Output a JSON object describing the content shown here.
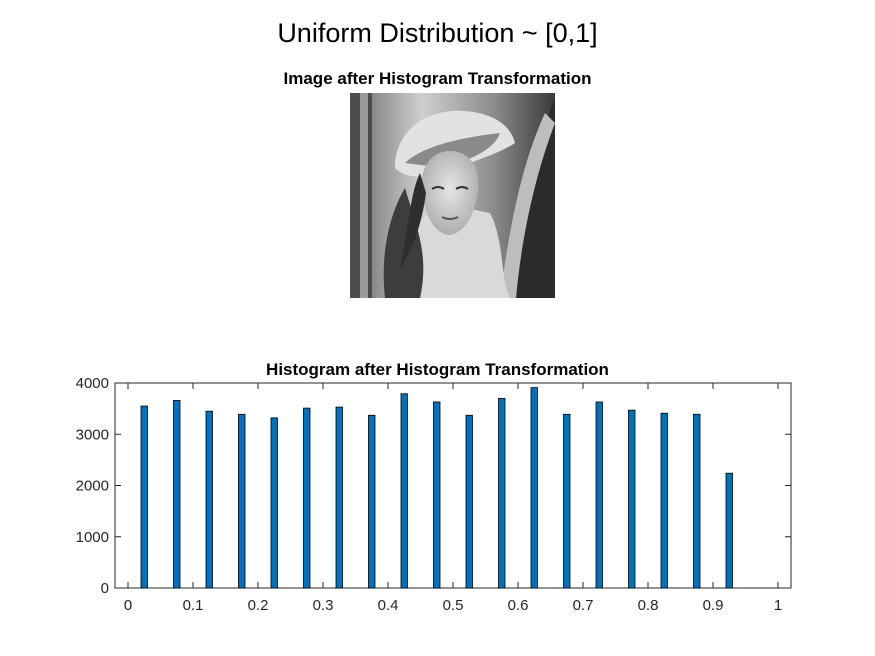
{
  "figure": {
    "suptitle": "Uniform Distribution ~ [0,1]"
  },
  "image_panel": {
    "title": "Image after Histogram Transformation",
    "icon": "grayscale-portrait-photo"
  },
  "chart_data": {
    "type": "bar",
    "title": "Histogram after Histogram Transformation",
    "xlabel": "",
    "ylabel": "",
    "xlim": [
      -0.02,
      1.02
    ],
    "ylim": [
      0,
      4000
    ],
    "bar_width": 0.01,
    "x_ticks": [
      0,
      0.1,
      0.2,
      0.3,
      0.4,
      0.5,
      0.6,
      0.7,
      0.8,
      0.9,
      1
    ],
    "x_tick_labels": [
      "0",
      "0.1",
      "0.2",
      "0.3",
      "0.4",
      "0.5",
      "0.6",
      "0.7",
      "0.8",
      "0.9",
      "1"
    ],
    "y_ticks": [
      0,
      1000,
      2000,
      3000,
      4000
    ],
    "y_tick_labels": [
      "0",
      "1000",
      "2000",
      "3000",
      "4000"
    ],
    "x": [
      0.025,
      0.075,
      0.125,
      0.175,
      0.225,
      0.275,
      0.325,
      0.375,
      0.425,
      0.475,
      0.525,
      0.575,
      0.625,
      0.675,
      0.725,
      0.775,
      0.825,
      0.875,
      0.925
    ],
    "values": [
      3550,
      3660,
      3450,
      3390,
      3320,
      3510,
      3530,
      3370,
      3790,
      3630,
      3370,
      3700,
      3910,
      3390,
      3630,
      3470,
      3410,
      3390,
      2240
    ],
    "bar_color": "#0072BD",
    "grid": false,
    "box": true
  }
}
